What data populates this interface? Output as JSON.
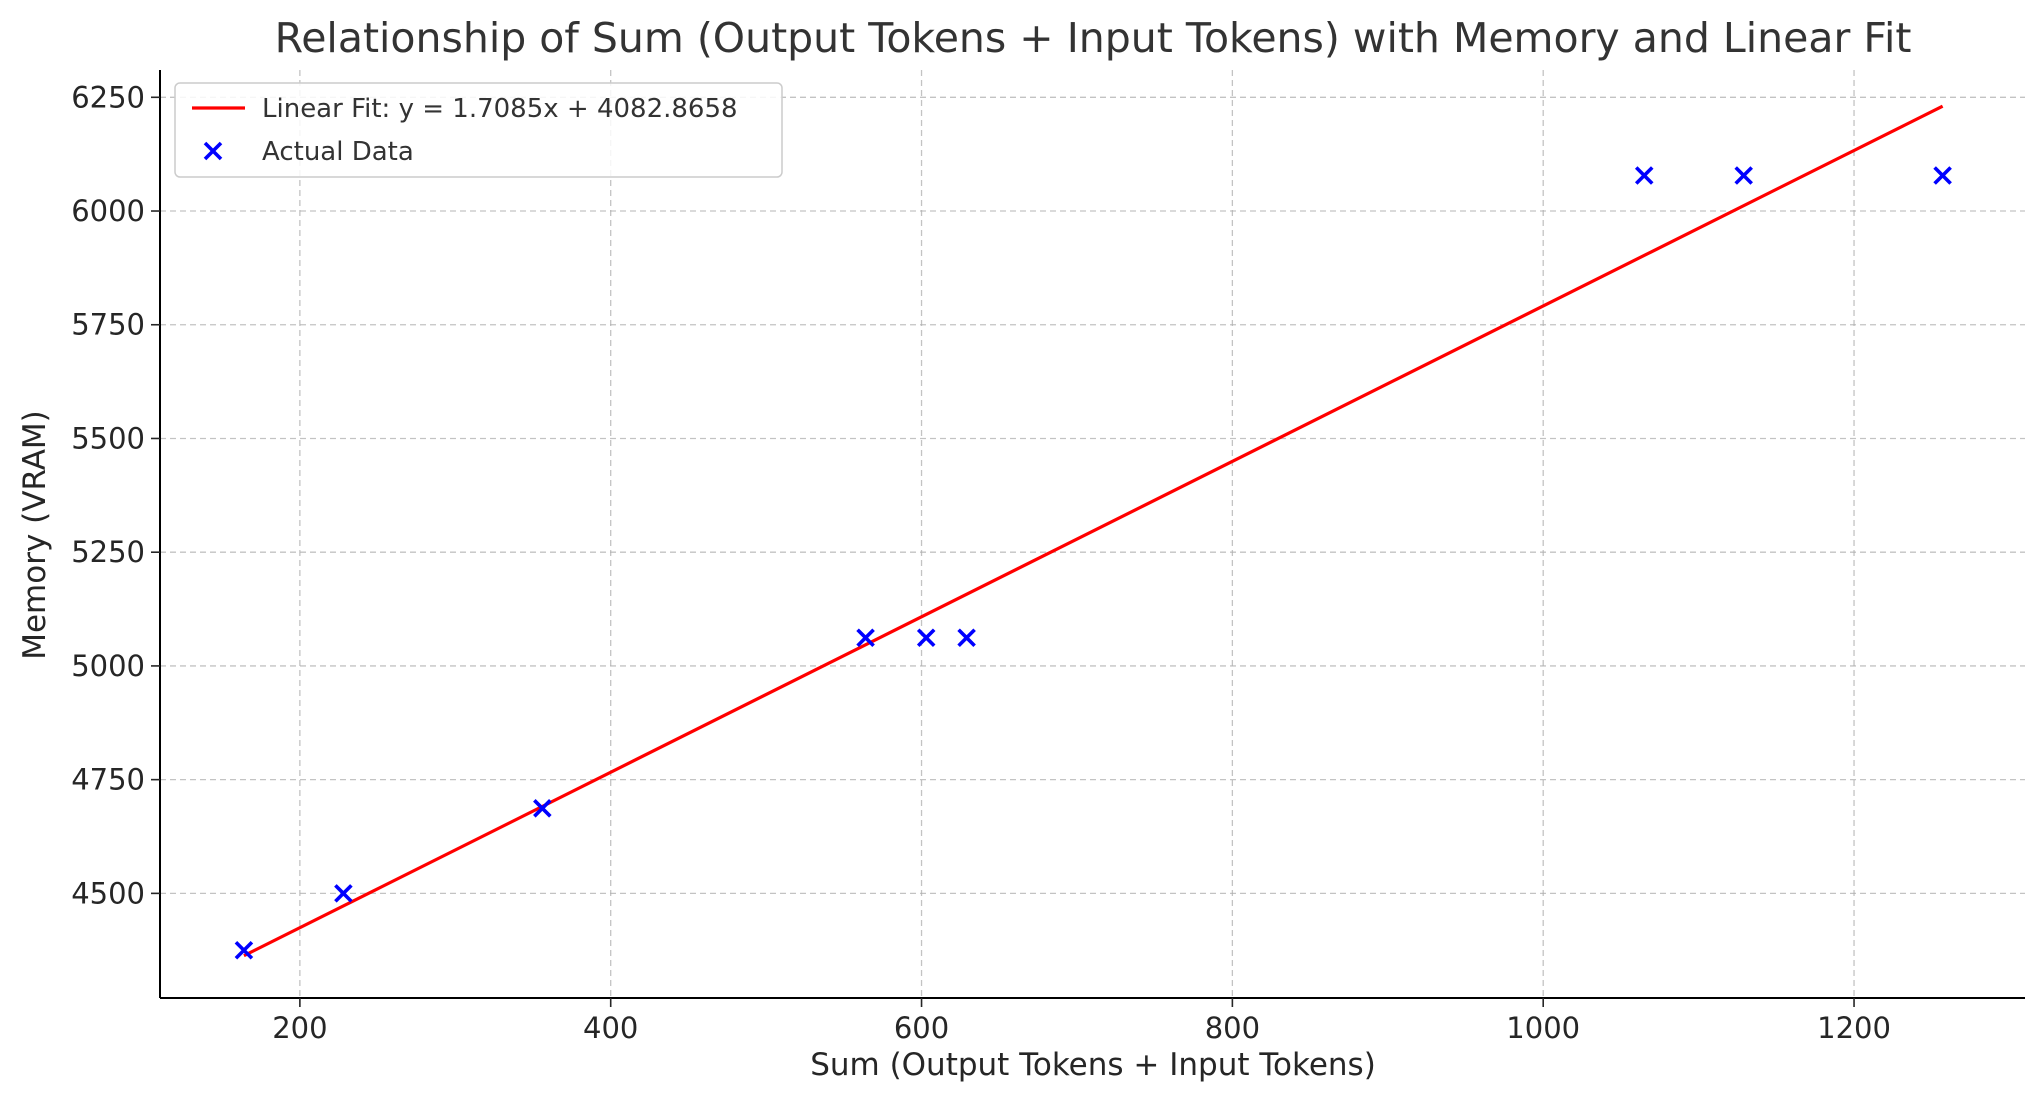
{
  "chart_data": {
    "type": "scatter",
    "title": "Relationship of Sum (Output Tokens + Input Tokens) with Memory and Linear Fit",
    "xlabel": "Sum (Output Tokens + Input Tokens)",
    "ylabel": "Memory (VRAM)",
    "xlim": [
      110,
      1310
    ],
    "ylim": [
      4270,
      6310
    ],
    "x_ticks": [
      200,
      400,
      600,
      800,
      1000,
      1200
    ],
    "y_ticks": [
      4500,
      4750,
      5000,
      5250,
      5500,
      5750,
      6000,
      6250
    ],
    "grid": true,
    "legend_position": "top-left",
    "series": [
      {
        "name": "Actual Data",
        "kind": "scatter",
        "marker": "x",
        "color": "#0000ff",
        "x": [
          164,
          228,
          356,
          564,
          603,
          629,
          1065,
          1129,
          1257
        ],
        "y": [
          4375,
          4500,
          4687,
          5062,
          5062,
          5062,
          6078,
          6078,
          6078
        ]
      },
      {
        "name": "Linear Fit: y = 1.7085x + 4082.8658",
        "kind": "line",
        "color": "#ff0000",
        "slope": 1.7085,
        "intercept": 4082.8658,
        "x_range": [
          164,
          1257
        ]
      }
    ]
  }
}
